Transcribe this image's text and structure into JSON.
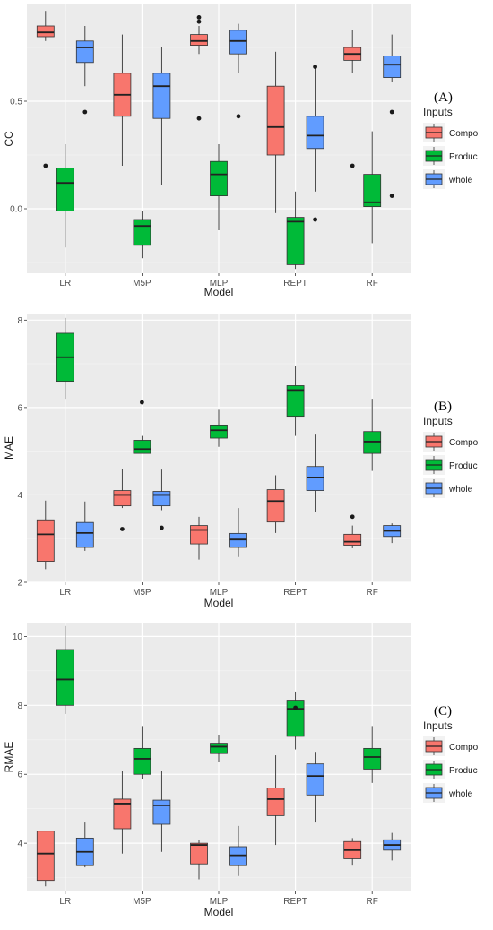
{
  "legend_title": "Inputs",
  "x_axis_label": "Model",
  "chart_data": [
    {
      "type": "boxplot",
      "panel_label": "(A)",
      "ylabel": "CC",
      "xlabel": "Model",
      "categories": [
        "LR",
        "M5P",
        "MLP",
        "REPT",
        "RF"
      ],
      "ylim": [
        -0.3,
        0.95
      ],
      "yticks": [
        0.0,
        0.5
      ],
      "ytick_labels": [
        "0.0",
        "0.5"
      ],
      "legend": {
        "title": "Inputs",
        "position": "right",
        "entries": [
          "Compo",
          "Produc",
          "whole"
        ]
      },
      "series": [
        {
          "name": "Compo",
          "color": "#F8766D",
          "boxes": [
            {
              "whislo": 0.78,
              "q1": 0.8,
              "med": 0.82,
              "q3": 0.85,
              "whishi": 0.92,
              "outliers": [
                0.2
              ]
            },
            {
              "whislo": 0.2,
              "q1": 0.43,
              "med": 0.53,
              "q3": 0.63,
              "whishi": 0.81,
              "outliers": []
            },
            {
              "whislo": 0.72,
              "q1": 0.76,
              "med": 0.78,
              "q3": 0.81,
              "whishi": 0.85,
              "outliers": [
                0.87,
                0.89,
                0.42
              ]
            },
            {
              "whislo": -0.02,
              "q1": 0.25,
              "med": 0.38,
              "q3": 0.57,
              "whishi": 0.73,
              "outliers": []
            },
            {
              "whislo": 0.63,
              "q1": 0.69,
              "med": 0.72,
              "q3": 0.75,
              "whishi": 0.83,
              "outliers": [
                0.2
              ]
            }
          ]
        },
        {
          "name": "Produc",
          "color": "#00BA38",
          "boxes": [
            {
              "whislo": -0.18,
              "q1": -0.01,
              "med": 0.12,
              "q3": 0.19,
              "whishi": 0.3,
              "outliers": []
            },
            {
              "whislo": -0.23,
              "q1": -0.17,
              "med": -0.08,
              "q3": -0.05,
              "whishi": -0.01,
              "outliers": []
            },
            {
              "whislo": -0.1,
              "q1": 0.06,
              "med": 0.16,
              "q3": 0.22,
              "whishi": 0.3,
              "outliers": []
            },
            {
              "whislo": -0.28,
              "q1": -0.26,
              "med": -0.06,
              "q3": -0.04,
              "whishi": 0.08,
              "outliers": []
            },
            {
              "whislo": -0.16,
              "q1": 0.01,
              "med": 0.03,
              "q3": 0.16,
              "whishi": 0.36,
              "outliers": []
            }
          ]
        },
        {
          "name": "whole",
          "color": "#619CFF",
          "boxes": [
            {
              "whislo": 0.57,
              "q1": 0.68,
              "med": 0.75,
              "q3": 0.78,
              "whishi": 0.85,
              "outliers": [
                0.45
              ]
            },
            {
              "whislo": 0.11,
              "q1": 0.42,
              "med": 0.57,
              "q3": 0.63,
              "whishi": 0.75,
              "outliers": []
            },
            {
              "whislo": 0.63,
              "q1": 0.72,
              "med": 0.78,
              "q3": 0.83,
              "whishi": 0.86,
              "outliers": [
                0.43
              ]
            },
            {
              "whislo": 0.08,
              "q1": 0.28,
              "med": 0.34,
              "q3": 0.43,
              "whishi": 0.66,
              "outliers": [
                0.66,
                -0.05
              ]
            },
            {
              "whislo": 0.59,
              "q1": 0.61,
              "med": 0.67,
              "q3": 0.71,
              "whishi": 0.81,
              "outliers": [
                0.45,
                0.06
              ]
            }
          ]
        }
      ]
    },
    {
      "type": "boxplot",
      "panel_label": "(B)",
      "ylabel": "MAE",
      "xlabel": "Model",
      "categories": [
        "LR",
        "M5P",
        "MLP",
        "REPT",
        "RF"
      ],
      "ylim": [
        2.0,
        8.15
      ],
      "yticks": [
        2,
        4,
        6,
        8
      ],
      "ytick_labels": [
        "2",
        "4",
        "6",
        "8"
      ],
      "legend": {
        "title": "Inputs",
        "position": "right",
        "entries": [
          "Compo",
          "Produc",
          "whole"
        ]
      },
      "series": [
        {
          "name": "Compo",
          "color": "#F8766D",
          "boxes": [
            {
              "whislo": 2.3,
              "q1": 2.48,
              "med": 3.1,
              "q3": 3.43,
              "whishi": 3.87,
              "outliers": []
            },
            {
              "whislo": 3.7,
              "q1": 3.75,
              "med": 4.0,
              "q3": 4.1,
              "whishi": 4.6,
              "outliers": [
                3.22
              ]
            },
            {
              "whislo": 2.52,
              "q1": 2.88,
              "med": 3.2,
              "q3": 3.3,
              "whishi": 3.5,
              "outliers": []
            },
            {
              "whislo": 3.13,
              "q1": 3.38,
              "med": 3.86,
              "q3": 4.12,
              "whishi": 4.45,
              "outliers": []
            },
            {
              "whislo": 2.78,
              "q1": 2.85,
              "med": 2.93,
              "q3": 3.1,
              "whishi": 3.3,
              "outliers": [
                3.5
              ]
            }
          ]
        },
        {
          "name": "Produc",
          "color": "#00BA38",
          "boxes": [
            {
              "whislo": 6.2,
              "q1": 6.6,
              "med": 7.15,
              "q3": 7.7,
              "whishi": 8.05,
              "outliers": []
            },
            {
              "whislo": 4.95,
              "q1": 4.95,
              "med": 5.05,
              "q3": 5.25,
              "whishi": 5.35,
              "outliers": [
                6.12
              ]
            },
            {
              "whislo": 5.1,
              "q1": 5.3,
              "med": 5.48,
              "q3": 5.6,
              "whishi": 5.95,
              "outliers": []
            },
            {
              "whislo": 5.35,
              "q1": 5.8,
              "med": 6.4,
              "q3": 6.5,
              "whishi": 6.95,
              "outliers": []
            },
            {
              "whislo": 4.55,
              "q1": 4.95,
              "med": 5.22,
              "q3": 5.45,
              "whishi": 6.2,
              "outliers": []
            }
          ]
        },
        {
          "name": "whole",
          "color": "#619CFF",
          "boxes": [
            {
              "whislo": 2.72,
              "q1": 2.8,
              "med": 3.13,
              "q3": 3.37,
              "whishi": 3.85,
              "outliers": []
            },
            {
              "whislo": 3.65,
              "q1": 3.75,
              "med": 4.0,
              "q3": 4.08,
              "whishi": 4.58,
              "outliers": [
                3.25
              ]
            },
            {
              "whislo": 2.58,
              "q1": 2.8,
              "med": 2.98,
              "q3": 3.12,
              "whishi": 3.7,
              "outliers": []
            },
            {
              "whislo": 3.62,
              "q1": 4.1,
              "med": 4.4,
              "q3": 4.65,
              "whishi": 5.4,
              "outliers": []
            },
            {
              "whislo": 2.9,
              "q1": 3.05,
              "med": 3.18,
              "q3": 3.3,
              "whishi": 3.35,
              "outliers": []
            }
          ]
        }
      ]
    },
    {
      "type": "boxplot",
      "panel_label": "(C)",
      "ylabel": "RMAE",
      "xlabel": "Model",
      "categories": [
        "LR",
        "M5P",
        "MLP",
        "REPT",
        "RF"
      ],
      "ylim": [
        2.6,
        10.4
      ],
      "yticks": [
        4,
        6,
        8,
        10
      ],
      "ytick_labels": [
        "4",
        "6",
        "8",
        "10"
      ],
      "legend": {
        "title": "Inputs",
        "position": "right",
        "entries": [
          "Compo",
          "Produc",
          "whole"
        ]
      },
      "series": [
        {
          "name": "Compo",
          "color": "#F8766D",
          "boxes": [
            {
              "whislo": 2.75,
              "q1": 2.92,
              "med": 3.7,
              "q3": 4.35,
              "whishi": 4.35,
              "outliers": []
            },
            {
              "whislo": 3.7,
              "q1": 4.42,
              "med": 5.15,
              "q3": 5.28,
              "whishi": 6.1,
              "outliers": []
            },
            {
              "whislo": 2.95,
              "q1": 3.4,
              "med": 3.95,
              "q3": 4.0,
              "whishi": 4.1,
              "outliers": []
            },
            {
              "whislo": 3.95,
              "q1": 4.8,
              "med": 5.28,
              "q3": 5.6,
              "whishi": 6.55,
              "outliers": []
            },
            {
              "whislo": 3.35,
              "q1": 3.55,
              "med": 3.8,
              "q3": 4.05,
              "whishi": 4.15,
              "outliers": []
            }
          ]
        },
        {
          "name": "Produc",
          "color": "#00BA38",
          "boxes": [
            {
              "whislo": 7.75,
              "q1": 8.0,
              "med": 8.75,
              "q3": 9.62,
              "whishi": 10.3,
              "outliers": []
            },
            {
              "whislo": 5.85,
              "q1": 6.0,
              "med": 6.45,
              "q3": 6.75,
              "whishi": 7.4,
              "outliers": []
            },
            {
              "whislo": 6.35,
              "q1": 6.6,
              "med": 6.8,
              "q3": 6.9,
              "whishi": 7.15,
              "outliers": []
            },
            {
              "whislo": 6.72,
              "q1": 7.1,
              "med": 7.9,
              "q3": 8.15,
              "whishi": 8.4,
              "outliers": [
                7.93
              ]
            },
            {
              "whislo": 5.75,
              "q1": 6.15,
              "med": 6.5,
              "q3": 6.75,
              "whishi": 7.4,
              "outliers": []
            }
          ]
        },
        {
          "name": "whole",
          "color": "#619CFF",
          "boxes": [
            {
              "whislo": 3.3,
              "q1": 3.35,
              "med": 3.75,
              "q3": 4.15,
              "whishi": 4.6,
              "outliers": []
            },
            {
              "whislo": 3.75,
              "q1": 4.55,
              "med": 5.1,
              "q3": 5.25,
              "whishi": 6.1,
              "outliers": []
            },
            {
              "whislo": 3.05,
              "q1": 3.35,
              "med": 3.65,
              "q3": 3.9,
              "whishi": 4.5,
              "outliers": []
            },
            {
              "whislo": 4.6,
              "q1": 5.4,
              "med": 5.95,
              "q3": 6.3,
              "whishi": 6.65,
              "outliers": []
            },
            {
              "whislo": 3.5,
              "q1": 3.8,
              "med": 3.95,
              "q3": 4.1,
              "whishi": 4.3,
              "outliers": []
            }
          ]
        }
      ]
    }
  ]
}
